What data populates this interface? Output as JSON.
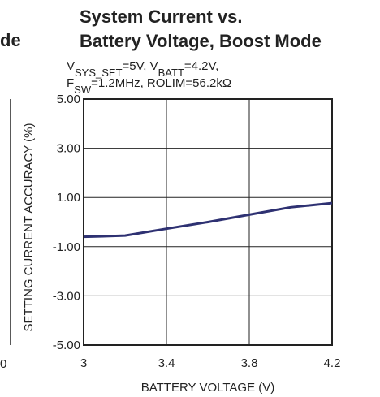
{
  "fragments": {
    "title": "de",
    "tick": "0"
  },
  "chart_data": {
    "type": "line",
    "title": [
      "System Current vs.",
      "Battery Voltage, Boost Mode"
    ],
    "subtitle": [
      [
        "V",
        "SYS_SET",
        "=5V, V",
        "BATT",
        "=4.2V,"
      ],
      [
        "F",
        "SW",
        "=1.2MHz, ROLIM=56.2kΩ"
      ]
    ],
    "xlabel": "BATTERY VOLTAGE (V)",
    "ylabel": "SETTING CURRENT ACCURACY (%)",
    "x": [
      3.0,
      3.2,
      3.4,
      3.6,
      3.8,
      4.0,
      4.2
    ],
    "series": [
      {
        "color": "#2e3172",
        "values": [
          -0.6,
          -0.55,
          -0.27,
          0.0,
          0.3,
          0.6,
          0.77
        ]
      }
    ],
    "xlim": [
      3,
      4.2
    ],
    "xticks": [
      3,
      3.4,
      3.8,
      4.2
    ],
    "ylim": [
      -5,
      5
    ],
    "yticks": [
      {
        "value": -5,
        "label": "-5.00"
      },
      {
        "value": -3,
        "label": "-3.00"
      },
      {
        "value": -1,
        "label": "-1.00"
      },
      {
        "value": 1,
        "label": "1.00"
      },
      {
        "value": 3,
        "label": "3.00"
      },
      {
        "value": 5,
        "label": "5.00"
      }
    ],
    "grid": true
  }
}
